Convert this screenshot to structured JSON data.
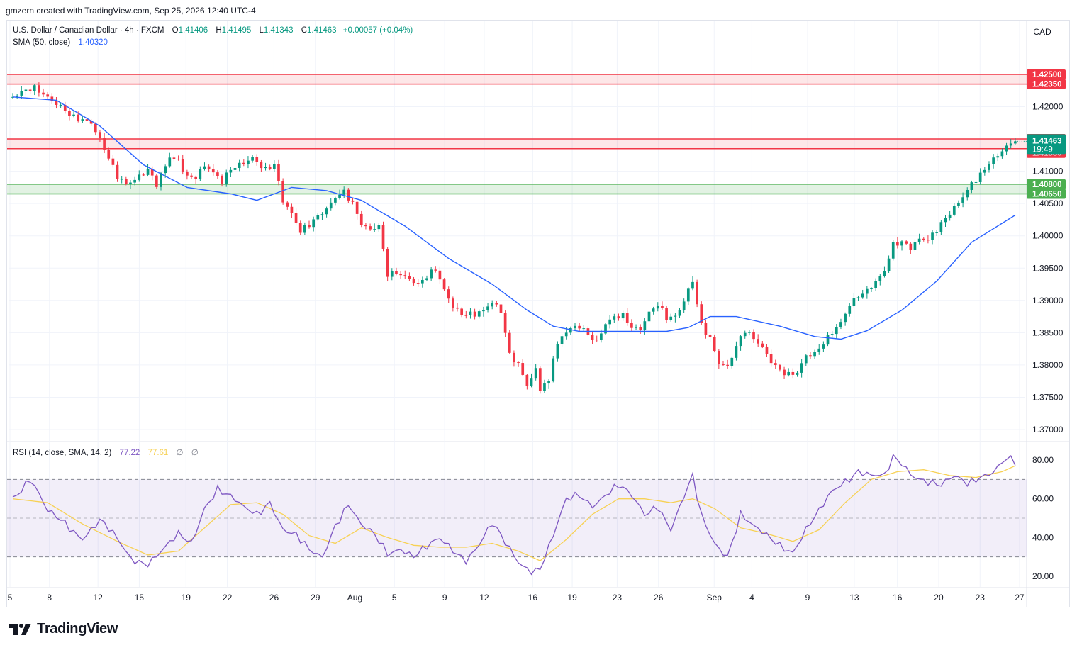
{
  "header": {
    "caption": "gmzern created with TradingView.com, Sep 25, 2026 12:40 UTC-4"
  },
  "legend": {
    "symbol": "U.S. Dollar / Canadian Dollar · 4h · FXCM",
    "o_label": "O",
    "o": "1.41406",
    "h_label": "H",
    "h": "1.41495",
    "l_label": "L",
    "l": "1.41343",
    "c_label": "C",
    "c": "1.41463",
    "change": "+0.00057 (+0.04%)",
    "sma_label": "SMA (50, close)",
    "sma_value": "1.40320",
    "rsi_label": "RSI (14, close, SMA, 14, 2)",
    "rsi_value": "77.22",
    "rsi_ma": "77.61",
    "rsi_extra1": "∅",
    "rsi_extra2": "∅"
  },
  "currency": "CAD",
  "brand": {
    "name": "TradingView",
    "icon": "tradingview-logo-icon"
  },
  "colors": {
    "up": "#089981",
    "down": "#f23645",
    "sma": "#2962ff",
    "rsi": "#7e57c2",
    "rsi_ma": "#f7d154",
    "resistance": "#f23645",
    "support": "#4caf50",
    "price_tag": "#089981"
  },
  "chart_data": [
    {
      "type": "candlestick",
      "title": "U.S. Dollar / Canadian Dollar · 4h · FXCM",
      "ylim": [
        1.368,
        1.4285
      ],
      "price_ticks": [
        "1.37000",
        "1.37500",
        "1.38000",
        "1.38500",
        "1.39000",
        "1.39500",
        "1.40000",
        "1.40500",
        "1.41000",
        "1.42000"
      ],
      "x_ticks": [
        "5",
        "8",
        "12",
        "15",
        "19",
        "22",
        "26",
        "29",
        "Aug",
        "5",
        "9",
        "12",
        "16",
        "19",
        "23",
        "26",
        "Sep",
        "4",
        "9",
        "13",
        "16",
        "20",
        "23",
        "27"
      ],
      "last_price": "1.41463",
      "countdown": "19:49",
      "levels": [
        {
          "label": "1.42500",
          "value": 1.425,
          "kind": "resistance"
        },
        {
          "label": "1.42350",
          "value": 1.4235,
          "kind": "resistance"
        },
        {
          "label": "1.41500",
          "value": 1.415,
          "kind": "resistance"
        },
        {
          "label": "1.41350",
          "value": 1.4135,
          "kind": "resistance"
        },
        {
          "label": "1.40800",
          "value": 1.408,
          "kind": "support"
        },
        {
          "label": "1.40650",
          "value": 1.4065,
          "kind": "support"
        }
      ],
      "zones": [
        {
          "from": 1.4235,
          "to": 1.425,
          "kind": "resistance"
        },
        {
          "from": 1.4135,
          "to": 1.415,
          "kind": "resistance"
        },
        {
          "from": 1.4065,
          "to": 1.408,
          "kind": "support"
        }
      ],
      "close_path": [
        [
          0,
          1.4215
        ],
        [
          5,
          1.4225
        ],
        [
          11,
          1.4205
        ],
        [
          14,
          1.4185
        ],
        [
          18,
          1.417
        ],
        [
          20,
          1.4145
        ],
        [
          22,
          1.412
        ],
        [
          24,
          1.4095
        ],
        [
          26,
          1.4085
        ],
        [
          28,
          1.409
        ],
        [
          31,
          1.41
        ],
        [
          33,
          1.4075
        ],
        [
          36,
          1.412
        ],
        [
          38,
          1.4118
        ],
        [
          40,
          1.4095
        ],
        [
          42,
          1.4095
        ],
        [
          44,
          1.411
        ],
        [
          46,
          1.4095
        ],
        [
          48,
          1.408
        ],
        [
          50,
          1.41
        ],
        [
          53,
          1.4115
        ],
        [
          55,
          1.4125
        ],
        [
          58,
          1.4105
        ],
        [
          60,
          1.411
        ],
        [
          62,
          1.405
        ],
        [
          64,
          1.403
        ],
        [
          66,
          1.4005
        ],
        [
          68,
          1.402
        ],
        [
          70,
          1.4035
        ],
        [
          72,
          1.4045
        ],
        [
          74,
          1.406
        ],
        [
          76,
          1.4065
        ],
        [
          78,
          1.4045
        ],
        [
          80,
          1.4015
        ],
        [
          82,
          1.401
        ],
        [
          84,
          1.402
        ],
        [
          86,
          1.3945
        ],
        [
          88,
          1.3945
        ],
        [
          91,
          1.393
        ],
        [
          93,
          1.392
        ],
        [
          95,
          1.3935
        ],
        [
          97,
          1.395
        ],
        [
          99,
          1.392
        ],
        [
          101,
          1.3895
        ],
        [
          103,
          1.388
        ],
        [
          106,
          1.3875
        ],
        [
          108,
          1.388
        ],
        [
          110,
          1.3895
        ],
        [
          112,
          1.3885
        ],
        [
          114,
          1.382
        ],
        [
          116,
          1.3805
        ],
        [
          118,
          1.377
        ],
        [
          120,
          1.379
        ],
        [
          121,
          1.376
        ],
        [
          123,
          1.377
        ],
        [
          124,
          1.381
        ],
        [
          126,
          1.3845
        ],
        [
          128,
          1.386
        ],
        [
          130,
          1.3865
        ],
        [
          132,
          1.385
        ],
        [
          134,
          1.3835
        ],
        [
          136,
          1.386
        ],
        [
          138,
          1.387
        ],
        [
          140,
          1.3875
        ],
        [
          142,
          1.386
        ],
        [
          144,
          1.386
        ],
        [
          146,
          1.3885
        ],
        [
          148,
          1.3895
        ],
        [
          150,
          1.387
        ],
        [
          152,
          1.387
        ],
        [
          154,
          1.3895
        ],
        [
          155,
          1.3915
        ],
        [
          156,
          1.393
        ],
        [
          158,
          1.3865
        ],
        [
          160,
          1.3845
        ],
        [
          162,
          1.3805
        ],
        [
          164,
          1.3795
        ],
        [
          166,
          1.3825
        ],
        [
          168,
          1.385
        ],
        [
          170,
          1.384
        ],
        [
          172,
          1.383
        ],
        [
          174,
          1.381
        ],
        [
          176,
          1.3795
        ],
        [
          178,
          1.3785
        ],
        [
          180,
          1.3785
        ],
        [
          182,
          1.381
        ],
        [
          184,
          1.3815
        ],
        [
          186,
          1.3835
        ],
        [
          188,
          1.3855
        ],
        [
          190,
          1.387
        ],
        [
          192,
          1.3895
        ],
        [
          194,
          1.3905
        ],
        [
          196,
          1.391
        ],
        [
          198,
          1.3925
        ],
        [
          200,
          1.3945
        ],
        [
          202,
          1.399
        ],
        [
          204,
          1.3995
        ],
        [
          206,
          1.3985
        ],
        [
          208,
          1.3995
        ],
        [
          210,
          1.399
        ],
        [
          212,
          1.4005
        ],
        [
          214,
          1.4025
        ],
        [
          216,
          1.4045
        ],
        [
          218,
          1.4065
        ],
        [
          220,
          1.4085
        ],
        [
          222,
          1.4095
        ],
        [
          224,
          1.411
        ],
        [
          226,
          1.412
        ],
        [
          228,
          1.4135
        ],
        [
          230,
          1.4146
        ]
      ],
      "sma": [
        [
          0,
          1.4215
        ],
        [
          10,
          1.421
        ],
        [
          20,
          1.417
        ],
        [
          30,
          1.411
        ],
        [
          40,
          1.4075
        ],
        [
          50,
          1.4065
        ],
        [
          56,
          1.4055
        ],
        [
          64,
          1.4075
        ],
        [
          72,
          1.407
        ],
        [
          80,
          1.4055
        ],
        [
          90,
          1.4015
        ],
        [
          100,
          1.3965
        ],
        [
          110,
          1.3925
        ],
        [
          118,
          1.3885
        ],
        [
          124,
          1.386
        ],
        [
          130,
          1.3852
        ],
        [
          140,
          1.3852
        ],
        [
          150,
          1.3852
        ],
        [
          155,
          1.3858
        ],
        [
          160,
          1.3875
        ],
        [
          166,
          1.3875
        ],
        [
          176,
          1.386
        ],
        [
          184,
          1.3844
        ],
        [
          190,
          1.384
        ],
        [
          196,
          1.3853
        ],
        [
          204,
          1.3885
        ],
        [
          212,
          1.393
        ],
        [
          220,
          1.399
        ],
        [
          230,
          1.4032
        ]
      ]
    },
    {
      "type": "line",
      "title": "RSI (14, close, SMA, 14, 2)",
      "ylim": [
        17,
        86
      ],
      "y_ticks": [
        "80.00",
        "60.00",
        "40.00",
        "20.00"
      ],
      "bands": [
        30,
        50,
        70
      ],
      "series": [
        {
          "name": "RSI",
          "values": [
            [
              0,
              62
            ],
            [
              4,
              70
            ],
            [
              8,
              52
            ],
            [
              12,
              48
            ],
            [
              16,
              41
            ],
            [
              20,
              48
            ],
            [
              24,
              38
            ],
            [
              27,
              30
            ],
            [
              31,
              28
            ],
            [
              35,
              34
            ],
            [
              38,
              40
            ],
            [
              41,
              37
            ],
            [
              44,
              57
            ],
            [
              47,
              66
            ],
            [
              50,
              60
            ],
            [
              53,
              54
            ],
            [
              56,
              52
            ],
            [
              59,
              60
            ],
            [
              62,
              45
            ],
            [
              65,
              40
            ],
            [
              68,
              32
            ],
            [
              71,
              30
            ],
            [
              74,
              48
            ],
            [
              77,
              58
            ],
            [
              80,
              45
            ],
            [
              83,
              40
            ],
            [
              86,
              32
            ],
            [
              89,
              36
            ],
            [
              92,
              31
            ],
            [
              95,
              34
            ],
            [
              98,
              38
            ],
            [
              101,
              34
            ],
            [
              104,
              30
            ],
            [
              107,
              37
            ],
            [
              110,
              46
            ],
            [
              113,
              36
            ],
            [
              116,
              28
            ],
            [
              119,
              24
            ],
            [
              121,
              25
            ],
            [
              124,
              40
            ],
            [
              127,
              58
            ],
            [
              130,
              62
            ],
            [
              133,
              58
            ],
            [
              136,
              63
            ],
            [
              139,
              66
            ],
            [
              142,
              60
            ],
            [
              145,
              52
            ],
            [
              148,
              58
            ],
            [
              151,
              45
            ],
            [
              154,
              60
            ],
            [
              156,
              70
            ],
            [
              158,
              50
            ],
            [
              161,
              38
            ],
            [
              164,
              32
            ],
            [
              167,
              52
            ],
            [
              170,
              44
            ],
            [
              173,
              40
            ],
            [
              176,
              37
            ],
            [
              179,
              34
            ],
            [
              182,
              44
            ],
            [
              185,
              52
            ],
            [
              188,
              63
            ],
            [
              191,
              70
            ],
            [
              194,
              76
            ],
            [
              197,
              72
            ],
            [
              200,
              70
            ],
            [
              202,
              80
            ],
            [
              204,
              78
            ],
            [
              206,
              74
            ],
            [
              208,
              72
            ],
            [
              210,
              70
            ],
            [
              213,
              66
            ],
            [
              216,
              70
            ],
            [
              219,
              68
            ],
            [
              222,
              73
            ],
            [
              225,
              75
            ],
            [
              228,
              80
            ],
            [
              230,
              77
            ]
          ]
        },
        {
          "name": "RSI-based MA",
          "values": [
            [
              0,
              60
            ],
            [
              8,
              58
            ],
            [
              16,
              47
            ],
            [
              24,
              38
            ],
            [
              31,
              31
            ],
            [
              38,
              33
            ],
            [
              44,
              45
            ],
            [
              50,
              57
            ],
            [
              56,
              58
            ],
            [
              62,
              52
            ],
            [
              68,
              41
            ],
            [
              74,
              37
            ],
            [
              80,
              45
            ],
            [
              86,
              40
            ],
            [
              92,
              36
            ],
            [
              98,
              35
            ],
            [
              104,
              35
            ],
            [
              110,
              37
            ],
            [
              116,
              33
            ],
            [
              121,
              28
            ],
            [
              127,
              39
            ],
            [
              133,
              52
            ],
            [
              139,
              60
            ],
            [
              145,
              60
            ],
            [
              151,
              58
            ],
            [
              156,
              60
            ],
            [
              161,
              55
            ],
            [
              167,
              45
            ],
            [
              173,
              42
            ],
            [
              179,
              38
            ],
            [
              185,
              44
            ],
            [
              191,
              58
            ],
            [
              197,
              70
            ],
            [
              203,
              74
            ],
            [
              209,
              75
            ],
            [
              215,
              72
            ],
            [
              221,
              71
            ],
            [
              227,
              74
            ],
            [
              230,
              77
            ]
          ]
        }
      ]
    }
  ]
}
